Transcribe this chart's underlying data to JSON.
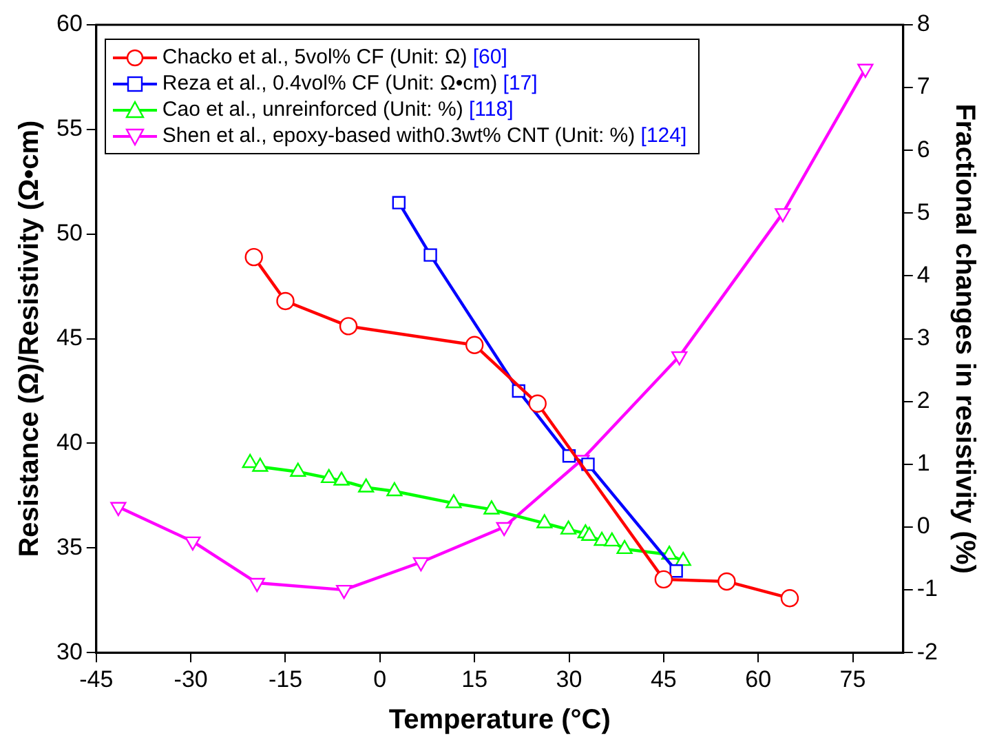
{
  "chart_data": {
    "type": "line",
    "xlabel": "Temperature (°C)",
    "ylabel": "Resistance (Ω)/Resistivity (Ω•cm)",
    "y2label": "Fractional changes in resistivity (%)",
    "xlim": [
      -45,
      83
    ],
    "xticks": [
      -45,
      -30,
      -15,
      0,
      15,
      30,
      45,
      60,
      75
    ],
    "ylim": [
      30,
      60
    ],
    "yticks": [
      30,
      35,
      40,
      45,
      50,
      55,
      60
    ],
    "y2lim": [
      -2,
      8
    ],
    "y2ticks": [
      -2,
      -1,
      0,
      1,
      2,
      3,
      4,
      5,
      6,
      7,
      8
    ],
    "legend": "top left",
    "grid": false,
    "series": [
      {
        "name": "Chacko et al., 5vol% CF (Unit: Ω) [60]",
        "color": "#ff0000",
        "marker": "circle",
        "x": [
          -20,
          -15,
          -5,
          15,
          25,
          45,
          55,
          65
        ],
        "values": [
          48.9,
          46.8,
          45.6,
          44.7,
          41.9,
          33.5,
          33.4,
          32.6
        ]
      },
      {
        "name": "Reza et al., 0.4vol% CF (Unit: Ω•cm) [17]",
        "color": "#0000ff",
        "marker": "square",
        "x": [
          3,
          8,
          22,
          30,
          33,
          47
        ],
        "values": [
          51.5,
          49,
          42.5,
          39.4,
          39,
          33.9
        ]
      },
      {
        "name": "Cao et al., unreinforced (Unit: %) [118]",
        "color": "#00ff00",
        "marker": "triangle",
        "axis": "y2",
        "x": [
          -20.6,
          -19,
          -13,
          -8.1,
          -6.1,
          -2.2,
          2.3,
          11.7,
          17.7,
          26.1,
          29.9,
          32.6,
          33.2,
          35.2,
          36.8,
          38.8,
          45.9,
          48.1
        ],
        "values": [
          1.02,
          0.96,
          0.88,
          0.78,
          0.74,
          0.63,
          0.57,
          0.38,
          0.28,
          0.06,
          -0.04,
          -0.1,
          -0.14,
          -0.22,
          -0.23,
          -0.35,
          -0.44,
          -0.54
        ]
      },
      {
        "name": "Shen et al., epoxy-based with0.3wt% CNT (Unit: %) [124]",
        "color": "#ff00ff",
        "marker": "triangle_down",
        "axis": "y2",
        "x": [
          -41.5,
          -29.7,
          -19.5,
          -5.7,
          6.5,
          19.7,
          32,
          47.5,
          63.9,
          77
        ],
        "values": [
          0.32,
          -0.23,
          -0.89,
          -1.0,
          -0.56,
          0.0,
          1.07,
          2.72,
          5.0,
          7.3
        ]
      }
    ]
  }
}
